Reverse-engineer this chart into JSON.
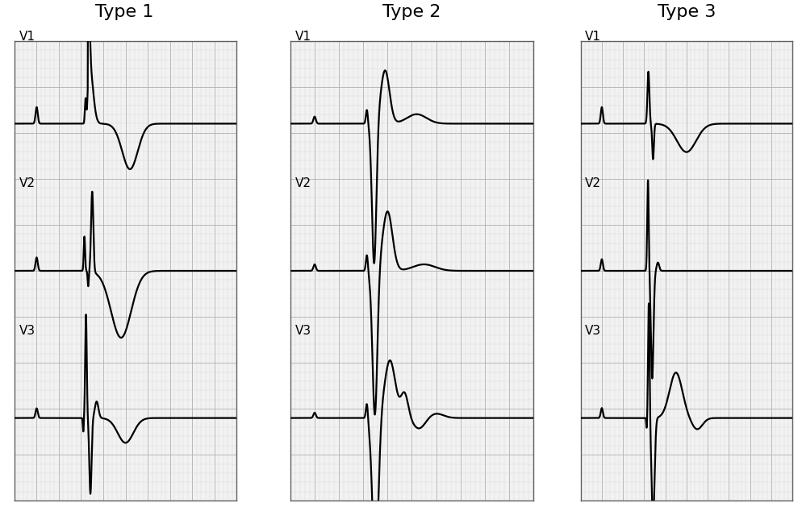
{
  "title1": "Type 1",
  "title2": "Type 2",
  "title3": "Type 3",
  "grid_minor_color": "#d8d8d8",
  "grid_major_color": "#b0b0b0",
  "ecg_color": "#000000",
  "ecg_lw": 1.6,
  "panel_bg": "#f2f2f2",
  "fig_bg": "#ffffff",
  "lead_labels": [
    "V1",
    "V2",
    "V3"
  ],
  "title_fontsize": 16,
  "label_fontsize": 11
}
